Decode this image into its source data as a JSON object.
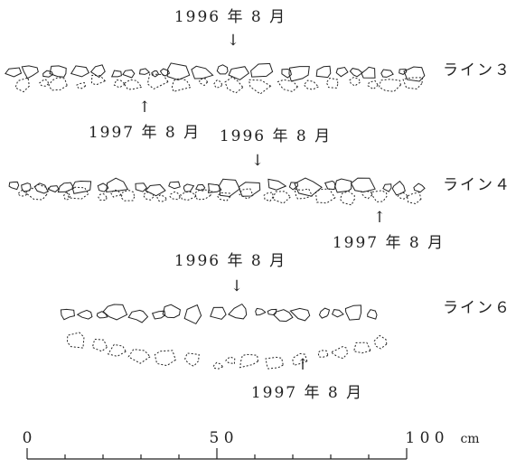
{
  "lines": [
    {
      "name": "ライン３",
      "upper_label": "1996 年 8 月",
      "lower_label": "1997 年 8 月"
    },
    {
      "name": "ライン４",
      "upper_label": "1996 年 8 月",
      "lower_label": "1997 年 8 月"
    },
    {
      "name": "ライン６",
      "upper_label": "1996 年 8 月",
      "lower_label": "1997 年 8 月"
    }
  ],
  "scale": {
    "labels": [
      "0",
      "5 0",
      "1 0 0"
    ],
    "unit": "cm"
  }
}
